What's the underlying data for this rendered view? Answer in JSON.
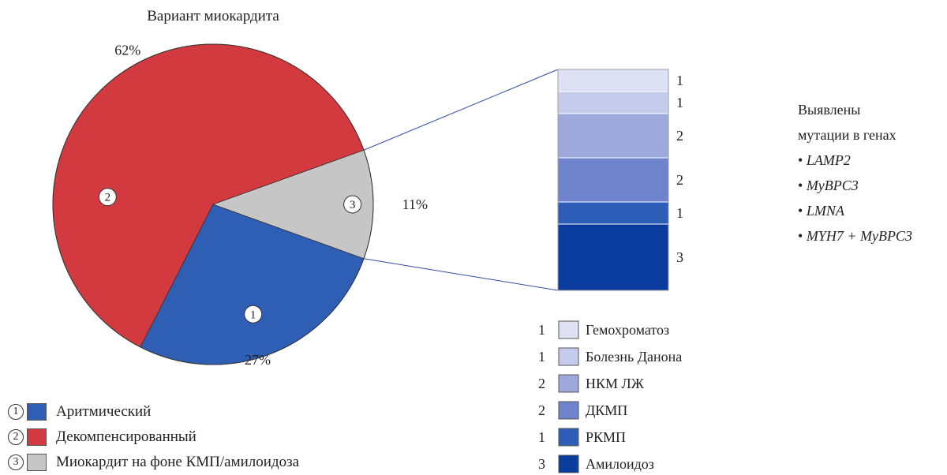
{
  "chart_data": [
    {
      "type": "pie",
      "title": "Вариант миокардита",
      "slices": [
        {
          "num": "1",
          "label": "Аритмический",
          "percent_label": "27%",
          "value": 27,
          "color": "#2f5fb5"
        },
        {
          "num": "2",
          "label": "Декомпенсированный",
          "percent_label": "62%",
          "value": 62,
          "color": "#d33a3f"
        },
        {
          "num": "3",
          "label": "Миокардит на фоне КМП/амилоидоза",
          "percent_label": "11%",
          "value": 11,
          "color": "#c6c6c6"
        }
      ]
    },
    {
      "type": "bar",
      "stacked": true,
      "segments": [
        {
          "value": 1,
          "label": "Гемохроматоз",
          "color": "#dde1f3"
        },
        {
          "value": 1,
          "label": "Болезнь Данона",
          "color": "#c5cbeb"
        },
        {
          "value": 2,
          "label": "НКМ ЛЖ",
          "color": "#9ea9db"
        },
        {
          "value": 2,
          "label": "ДКМП",
          "color": "#6e83cb"
        },
        {
          "value": 1,
          "label": "РКМП",
          "color": "#2e5db8"
        },
        {
          "value": 3,
          "label": "Амилоидоз",
          "color": "#0a3c9e"
        }
      ]
    }
  ],
  "mutations": {
    "heading_line1": "Выявлены",
    "heading_line2": "мутации в генах",
    "genes": [
      "LAMP2",
      "MyBPC3",
      "LMNA",
      "MYH7 + MyBPC3"
    ]
  }
}
